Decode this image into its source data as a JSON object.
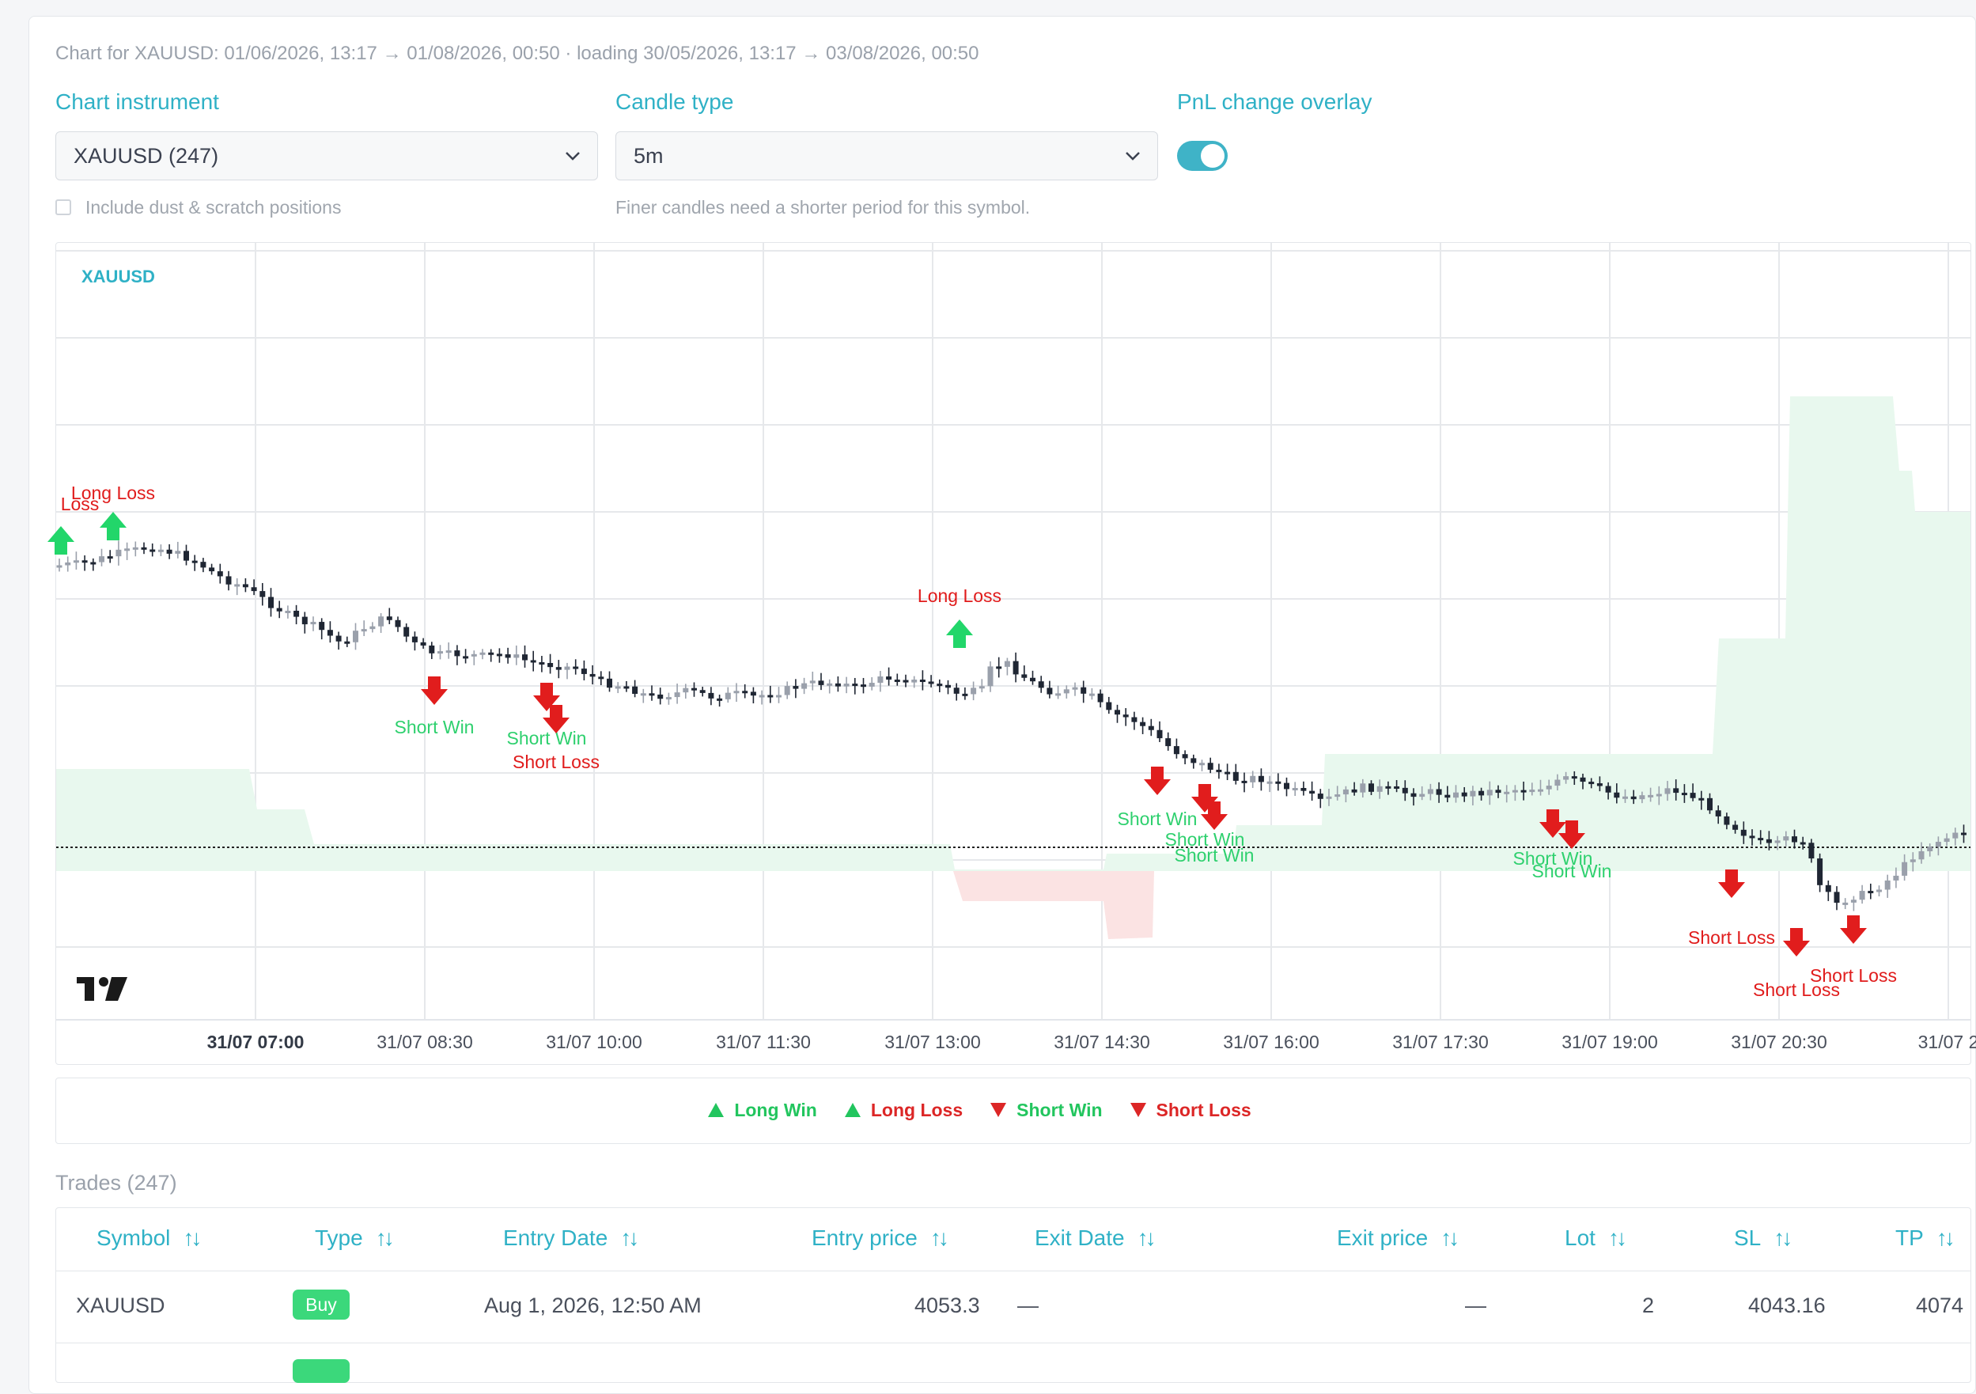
{
  "info_line": "Chart for XAUUSD: 01/06/2026, 13:17 → 01/08/2026, 00:50 · loading 30/05/2026, 13:17 → 03/08/2026, 00:50",
  "controls": {
    "instrument_label": "Chart instrument",
    "instrument_value": "XAUUSD (247)",
    "candle_label": "Candle type",
    "candle_value": "5m",
    "overlay_label": "PnL change overlay",
    "overlay_on": true,
    "dust_label": "Include dust & scratch positions",
    "dust_checked": false,
    "candle_hint": "Finer candles need a shorter period for this symbol."
  },
  "chart": {
    "symbol": "XAUUSD",
    "x_tick_labels": [
      "31/07 07:00",
      "31/07 08:30",
      "31/07 10:00",
      "31/07 11:30",
      "31/07 13:00",
      "31/07 14:30",
      "31/07 16:00",
      "31/07 17:30",
      "31/07 19:00",
      "31/07 20:30",
      "31/07 2"
    ],
    "markers": [
      {
        "label": "Loss",
        "kind": "long-loss"
      },
      {
        "label": "Long Loss",
        "kind": "long-loss"
      },
      {
        "label": "Short Win",
        "kind": "short-win"
      },
      {
        "label": "Short Win",
        "kind": "short-win"
      },
      {
        "label": "Short Loss",
        "kind": "short-loss"
      },
      {
        "label": "Long Loss",
        "kind": "long-loss"
      },
      {
        "label": "Short Win",
        "kind": "short-win"
      },
      {
        "label": "Short Win",
        "kind": "short-win"
      },
      {
        "label": "Short Win",
        "kind": "short-win"
      },
      {
        "label": "Short Win",
        "kind": "short-win"
      },
      {
        "label": "Short Win",
        "kind": "short-win"
      },
      {
        "label": "Short Loss",
        "kind": "short-loss"
      },
      {
        "label": "Short Loss",
        "kind": "short-loss"
      },
      {
        "label": "Short Loss",
        "kind": "short-loss"
      }
    ],
    "colors": {
      "long_marker": "#22d66a",
      "short_marker": "#e11d1d",
      "win_text": "#2ed06e",
      "loss_text": "#e01b1b",
      "overlay_positive": "#e8f8ee",
      "overlay_negative": "#fbe3e3",
      "candle_up": "#9aa0ab",
      "candle_down": "#1f2633"
    }
  },
  "legend": [
    {
      "label": "Long Win",
      "shape": "triangle-up",
      "color": "#22c55e",
      "text_color": "#22c55e"
    },
    {
      "label": "Long Loss",
      "shape": "triangle-up",
      "color": "#22c55e",
      "text_color": "#dc2626"
    },
    {
      "label": "Short Win",
      "shape": "triangle-down",
      "color": "#dc2626",
      "text_color": "#22c55e"
    },
    {
      "label": "Short Loss",
      "shape": "triangle-down",
      "color": "#dc2626",
      "text_color": "#dc2626"
    }
  ],
  "trades": {
    "title": "Trades (247)",
    "headers": [
      "Symbol",
      "Type",
      "Entry Date",
      "Entry price",
      "Exit Date",
      "Exit price",
      "Lot",
      "SL",
      "TP"
    ],
    "rows": [
      {
        "symbol": "XAUUSD",
        "type": "Buy",
        "entry_date": "Aug 1, 2026, 12:50 AM",
        "entry_price": "4053.3",
        "exit_date": "—",
        "exit_price": "—",
        "lot": "2",
        "sl": "4043.16",
        "tp": "4074"
      }
    ]
  }
}
